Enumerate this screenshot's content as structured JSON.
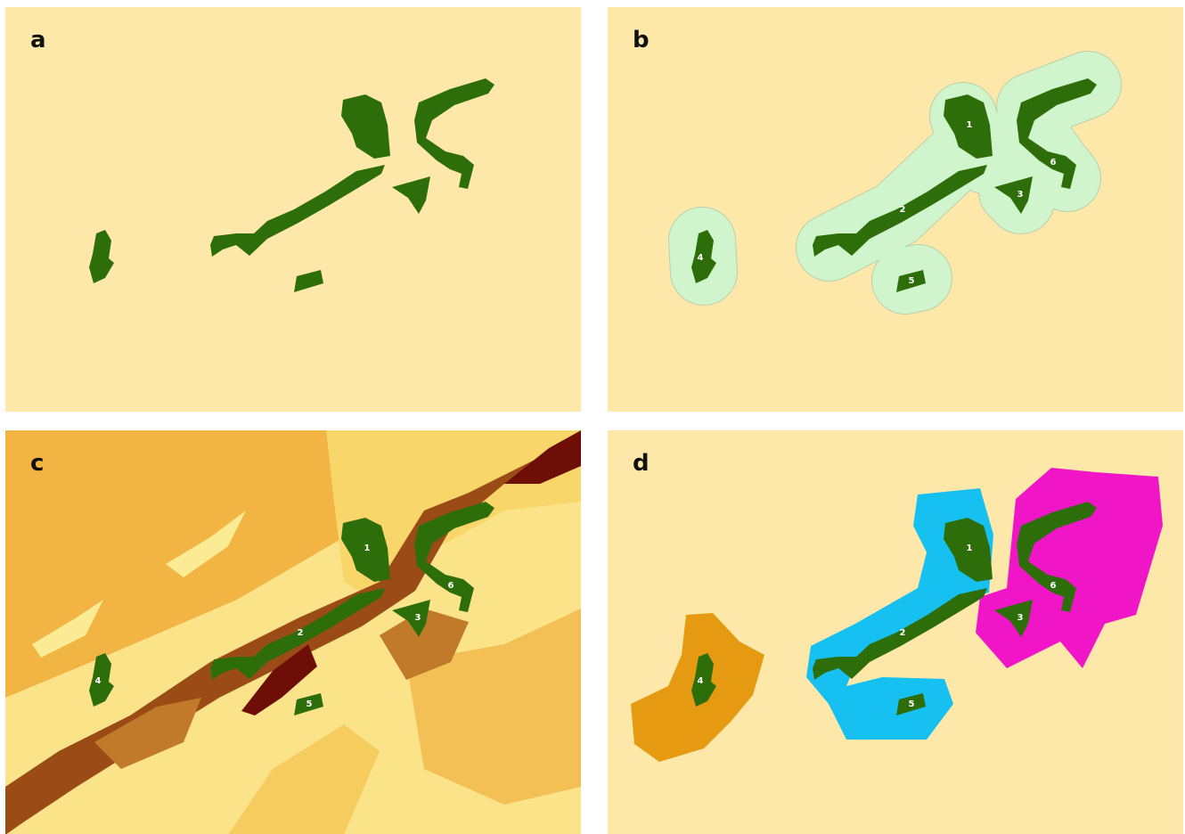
{
  "panels": [
    {
      "label": "a"
    },
    {
      "label": "b",
      "patch_labels": [
        "1",
        "2",
        "3",
        "4",
        "5",
        "6"
      ]
    },
    {
      "label": "c",
      "patch_labels": [
        "1",
        "2",
        "3",
        "4",
        "5",
        "6"
      ]
    },
    {
      "label": "d",
      "patch_labels": [
        "1",
        "2",
        "3",
        "4",
        "5",
        "6"
      ]
    }
  ]
}
